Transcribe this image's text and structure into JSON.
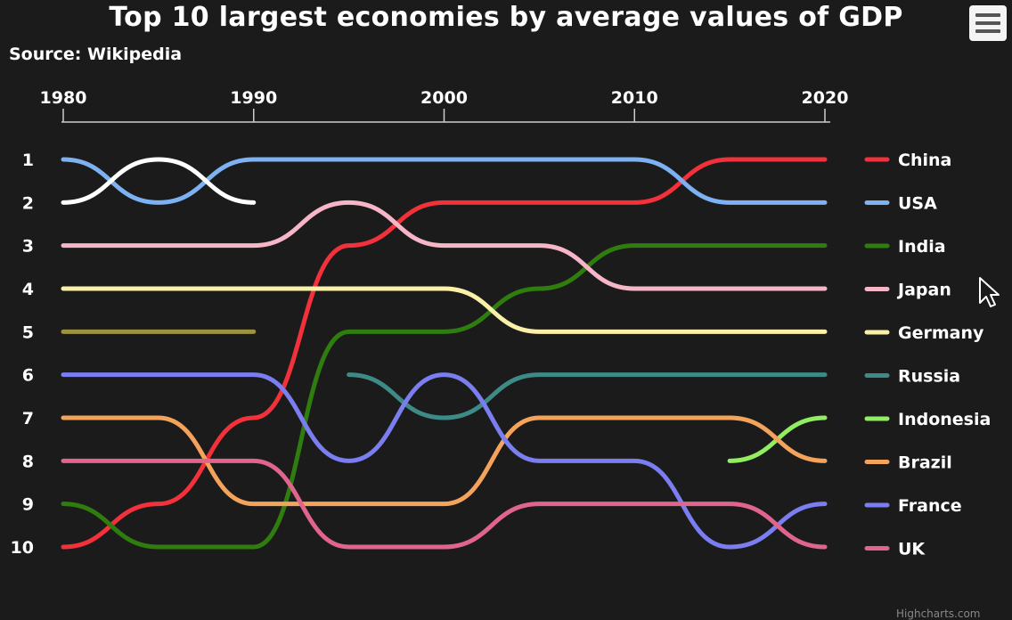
{
  "title": "Top 10 largest economies by average values of GDP",
  "subtitle": "Source: Wikipedia",
  "credits": "Highcharts.com",
  "chart_data": {
    "type": "line",
    "title": "Top 10 largest economies by average values of GDP",
    "subtitle": "Source: Wikipedia",
    "xlabel": "",
    "ylabel": "",
    "x_axis_position": "top",
    "x_ticks": [
      1980,
      1990,
      2000,
      2010,
      2020
    ],
    "xlim": [
      1980,
      2020
    ],
    "y_ticks": [
      1,
      2,
      3,
      4,
      5,
      6,
      7,
      8,
      9,
      10
    ],
    "ylim": [
      1,
      10
    ],
    "y_reversed": true,
    "x": [
      1980,
      1985,
      1990,
      1995,
      2000,
      2005,
      2010,
      2015,
      2020
    ],
    "legend": "right",
    "grid": false,
    "series": [
      {
        "name": "China",
        "color": "#f2313b",
        "values": [
          10,
          9,
          7,
          3,
          2,
          2,
          2,
          1,
          1
        ]
      },
      {
        "name": "USA",
        "color": "#7db1f2",
        "values": [
          1,
          2,
          1,
          1,
          1,
          1,
          1,
          2,
          2
        ]
      },
      {
        "name": "India",
        "color": "#2f7d0e",
        "values": [
          9,
          10,
          10,
          5,
          5,
          4,
          3,
          3,
          3
        ]
      },
      {
        "name": "Japan",
        "color": "#f7b6c8",
        "values": [
          3,
          3,
          3,
          2,
          3,
          3,
          4,
          4,
          4
        ]
      },
      {
        "name": "Germany",
        "color": "#fbf0a8",
        "values": [
          4,
          4,
          4,
          4,
          4,
          5,
          5,
          5,
          5
        ]
      },
      {
        "name": "Russia",
        "color": "#3e8a86",
        "values": [
          null,
          null,
          null,
          6,
          7,
          6,
          6,
          6,
          6
        ]
      },
      {
        "name": "Indonesia",
        "color": "#90ee60",
        "values": [
          null,
          null,
          null,
          null,
          null,
          null,
          null,
          8,
          7
        ]
      },
      {
        "name": "Brazil",
        "color": "#f4a35b",
        "values": [
          7,
          7,
          9,
          9,
          9,
          7,
          7,
          7,
          8
        ]
      },
      {
        "name": "France",
        "color": "#7b7ef0",
        "values": [
          6,
          6,
          6,
          8,
          6,
          8,
          8,
          10,
          9
        ]
      },
      {
        "name": "UK",
        "color": "#e0648c",
        "values": [
          8,
          8,
          8,
          10,
          10,
          9,
          9,
          9,
          10
        ]
      },
      {
        "color": "#ffffff",
        "legend": false,
        "values": [
          2,
          1,
          2,
          null,
          null,
          null,
          null,
          null,
          null
        ]
      },
      {
        "color": "#9c9441",
        "legend": false,
        "values": [
          5,
          5,
          5,
          null,
          null,
          null,
          null,
          null,
          null
        ]
      }
    ]
  }
}
